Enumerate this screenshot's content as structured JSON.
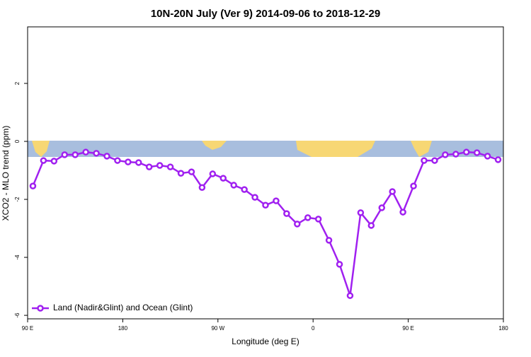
{
  "chart_data": {
    "type": "line",
    "title": "10N-20N July (Ver 9)   2014-09-06 to 2018-12-29",
    "x_label": "Longitude (deg E)",
    "y_label": "XCO2 - MLO trend (ppm)",
    "xlim": [
      90,
      540
    ],
    "xticks": [
      {
        "value": 90,
        "label": "90 E"
      },
      {
        "value": 180,
        "label": "180"
      },
      {
        "value": 270,
        "label": "90 W"
      },
      {
        "value": 360,
        "label": "0"
      },
      {
        "value": 450,
        "label": "90 E"
      },
      {
        "value": 540,
        "label": "180"
      }
    ],
    "ylim": [
      -6.12,
      3.95
    ],
    "yticks": [
      -6,
      -4,
      -2,
      0,
      2
    ],
    "x": [
      95,
      105,
      115,
      125,
      135,
      145,
      155,
      165,
      175,
      185,
      195,
      205,
      215,
      225,
      235,
      245,
      255,
      265,
      275,
      285,
      295,
      305,
      315,
      325,
      335,
      345,
      355,
      365,
      375,
      385,
      395,
      405,
      415,
      425,
      435,
      445,
      455,
      465,
      475,
      485,
      495,
      505,
      515,
      525,
      535
    ],
    "series": [
      {
        "name": "Land (Nadir&Glint) and Ocean (Glint)",
        "color": "#a020f0",
        "values": [
          -1.54,
          -0.66,
          -0.68,
          -0.46,
          -0.46,
          -0.37,
          -0.41,
          -0.51,
          -0.66,
          -0.71,
          -0.73,
          -0.88,
          -0.83,
          -0.88,
          -1.1,
          -1.05,
          -1.59,
          -1.12,
          -1.27,
          -1.51,
          -1.66,
          -1.93,
          -2.2,
          -2.05,
          -2.49,
          -2.85,
          -2.63,
          -2.68,
          -3.41,
          -4.24,
          -5.32,
          -2.46,
          -2.9,
          -2.29,
          -1.73,
          -2.44,
          -1.54,
          -0.66,
          -0.66,
          -0.46,
          -0.44,
          -0.37,
          -0.39,
          -0.51,
          -0.63
        ]
      }
    ],
    "legend": "bottom-left"
  }
}
